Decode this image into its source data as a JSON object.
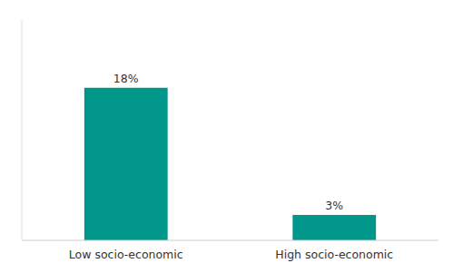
{
  "chart_data": {
    "type": "bar",
    "categories": [
      "Low socio-economic",
      "High socio-economic"
    ],
    "values": [
      18,
      3
    ],
    "value_labels": [
      "18%",
      "3%"
    ],
    "data_labels": true,
    "color": "#00968A",
    "ylim": [
      0,
      26
    ],
    "yticks": [],
    "grid": false,
    "tick_labels": "x"
  }
}
